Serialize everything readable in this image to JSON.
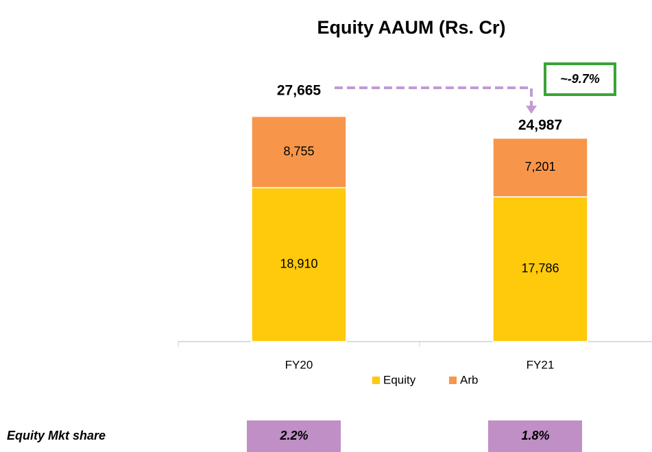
{
  "chart_data": {
    "type": "bar",
    "stacked": true,
    "title": "Equity AAUM (Rs. Cr)",
    "categories": [
      "FY20",
      "FY21"
    ],
    "series": [
      {
        "name": "Equity",
        "color": "#FFC90C",
        "values": [
          18910,
          17786
        ],
        "value_labels": [
          "18,910",
          "17,786"
        ]
      },
      {
        "name": "Arb",
        "color": "#F7964A",
        "values": [
          8755,
          7201
        ],
        "value_labels": [
          "8,755",
          "7,201"
        ]
      }
    ],
    "totals": [
      27665,
      24987
    ],
    "total_labels": [
      "27,665",
      "24,987"
    ],
    "annotation": "~-9.7%",
    "ylim": [
      0,
      30000
    ],
    "legend": "bottom",
    "market_share": {
      "label": "Equity Mkt share",
      "values": [
        2.2,
        1.8
      ],
      "value_labels": [
        "2.2%",
        "1.8%"
      ],
      "color": "#BF8FC6"
    }
  }
}
